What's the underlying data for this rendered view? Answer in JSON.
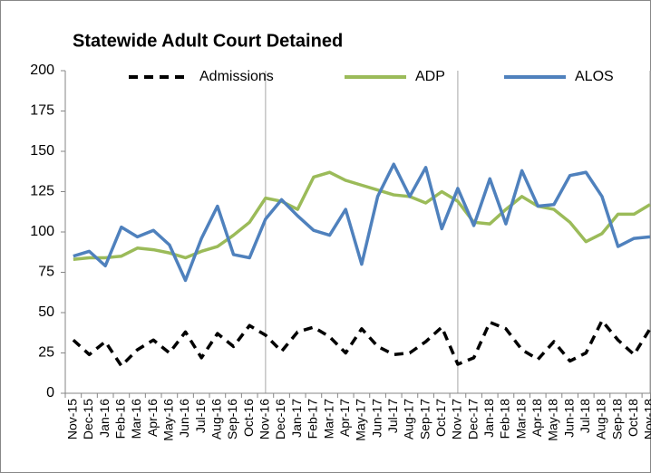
{
  "chart_data": {
    "type": "line",
    "title": "Statewide Adult Court Detained",
    "categories": [
      "Nov-15",
      "Dec-15",
      "Jan-16",
      "Feb-16",
      "Mar-16",
      "Apr-16",
      "May-16",
      "Jun-16",
      "Jul-16",
      "Aug-16",
      "Sep-16",
      "Oct-16",
      "Nov-16",
      "Dec-16",
      "Jan-17",
      "Feb-17",
      "Mar-17",
      "Apr-17",
      "May-17",
      "Jun-17",
      "Jul-17",
      "Aug-17",
      "Sep-17",
      "Oct-17",
      "Nov-17",
      "Dec-17",
      "Jan-18",
      "Feb-18",
      "Mar-18",
      "Apr-18",
      "May-18",
      "Jun-18",
      "Jul-18",
      "Aug-18",
      "Sep-18",
      "Oct-18",
      "Nov-18"
    ],
    "series": [
      {
        "name": "Admissions",
        "color": "#000000",
        "dash": true,
        "values": [
          33,
          24,
          32,
          17,
          27,
          33,
          25,
          38,
          22,
          37,
          29,
          42,
          36,
          26,
          38,
          41,
          35,
          25,
          40,
          29,
          24,
          25,
          32,
          41,
          18,
          22,
          44,
          40,
          27,
          21,
          32,
          20,
          25,
          45,
          33,
          24,
          40
        ]
      },
      {
        "name": "ADP",
        "color": "#9bbb59",
        "dash": false,
        "values": [
          83,
          84,
          84,
          85,
          90,
          89,
          87,
          84,
          88,
          91,
          98,
          106,
          121,
          119,
          114,
          134,
          137,
          132,
          129,
          126,
          123,
          122,
          118,
          125,
          119,
          106,
          105,
          114,
          122,
          116,
          114,
          106,
          94,
          99,
          111,
          111,
          117
        ]
      },
      {
        "name": "ALOS",
        "color": "#4f81bd",
        "dash": false,
        "values": [
          85,
          88,
          79,
          103,
          97,
          101,
          92,
          70,
          96,
          116,
          86,
          84,
          108,
          120,
          110,
          101,
          98,
          114,
          80,
          122,
          142,
          122,
          140,
          102,
          127,
          104,
          133,
          105,
          138,
          116,
          117,
          135,
          137,
          122,
          91,
          96,
          97
        ]
      }
    ],
    "ylim": [
      0,
      200
    ],
    "yticks": [
      0,
      25,
      50,
      75,
      100,
      125,
      150,
      175,
      200
    ],
    "legend": "top"
  }
}
